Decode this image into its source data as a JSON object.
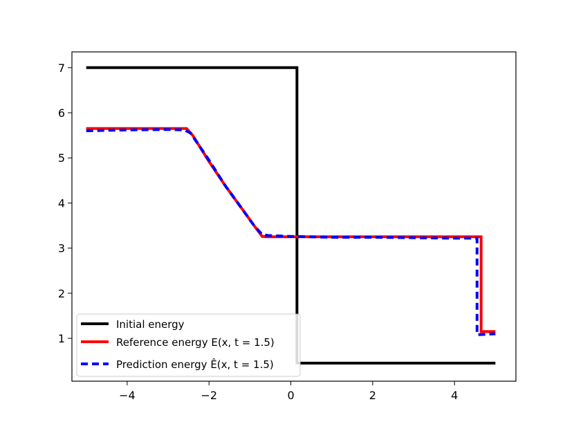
{
  "chart_data": {
    "type": "line",
    "title": "",
    "xlabel": "",
    "ylabel": "",
    "xlim": [
      -5.35,
      5.5
    ],
    "ylim": [
      0.05,
      7.35
    ],
    "xticks": [
      -4,
      -2,
      0,
      2,
      4
    ],
    "xtick_labels": [
      "−4",
      "−2",
      "0",
      "2",
      "4"
    ],
    "yticks": [
      1,
      2,
      3,
      4,
      5,
      6,
      7
    ],
    "ytick_labels": [
      "1",
      "2",
      "3",
      "4",
      "5",
      "6",
      "7"
    ],
    "grid": false,
    "legend_position": "lower-left",
    "series": [
      {
        "name": "Initial energy",
        "color": "#000000",
        "style": "solid",
        "points": [
          [
            -5.0,
            7.0
          ],
          [
            0.15,
            7.0
          ],
          [
            0.15,
            0.45
          ],
          [
            5.0,
            0.45
          ]
        ]
      },
      {
        "name": "Reference energy E(x, t = 1.5)",
        "color": "#ff0000",
        "style": "solid",
        "points": [
          [
            -5.0,
            5.65
          ],
          [
            -2.55,
            5.65
          ],
          [
            -2.4,
            5.5
          ],
          [
            -2.0,
            4.92
          ],
          [
            -1.6,
            4.38
          ],
          [
            -1.2,
            3.88
          ],
          [
            -0.9,
            3.5
          ],
          [
            -0.7,
            3.26
          ],
          [
            -0.6,
            3.25
          ],
          [
            4.65,
            3.25
          ],
          [
            4.65,
            1.15
          ],
          [
            5.0,
            1.15
          ]
        ]
      },
      {
        "name": "Prediction energy Ê(x, t = 1.5)",
        "color": "#0000ff",
        "style": "dashed",
        "points": [
          [
            -5.0,
            5.6
          ],
          [
            -4.0,
            5.62
          ],
          [
            -3.0,
            5.63
          ],
          [
            -2.6,
            5.62
          ],
          [
            -2.45,
            5.55
          ],
          [
            -2.0,
            4.95
          ],
          [
            -1.6,
            4.38
          ],
          [
            -1.2,
            3.88
          ],
          [
            -0.9,
            3.5
          ],
          [
            -0.7,
            3.3
          ],
          [
            -0.55,
            3.28
          ],
          [
            0.0,
            3.26
          ],
          [
            1.0,
            3.24
          ],
          [
            2.0,
            3.24
          ],
          [
            3.0,
            3.23
          ],
          [
            4.0,
            3.22
          ],
          [
            4.55,
            3.22
          ],
          [
            4.55,
            1.08
          ],
          [
            5.0,
            1.1
          ]
        ]
      }
    ]
  }
}
